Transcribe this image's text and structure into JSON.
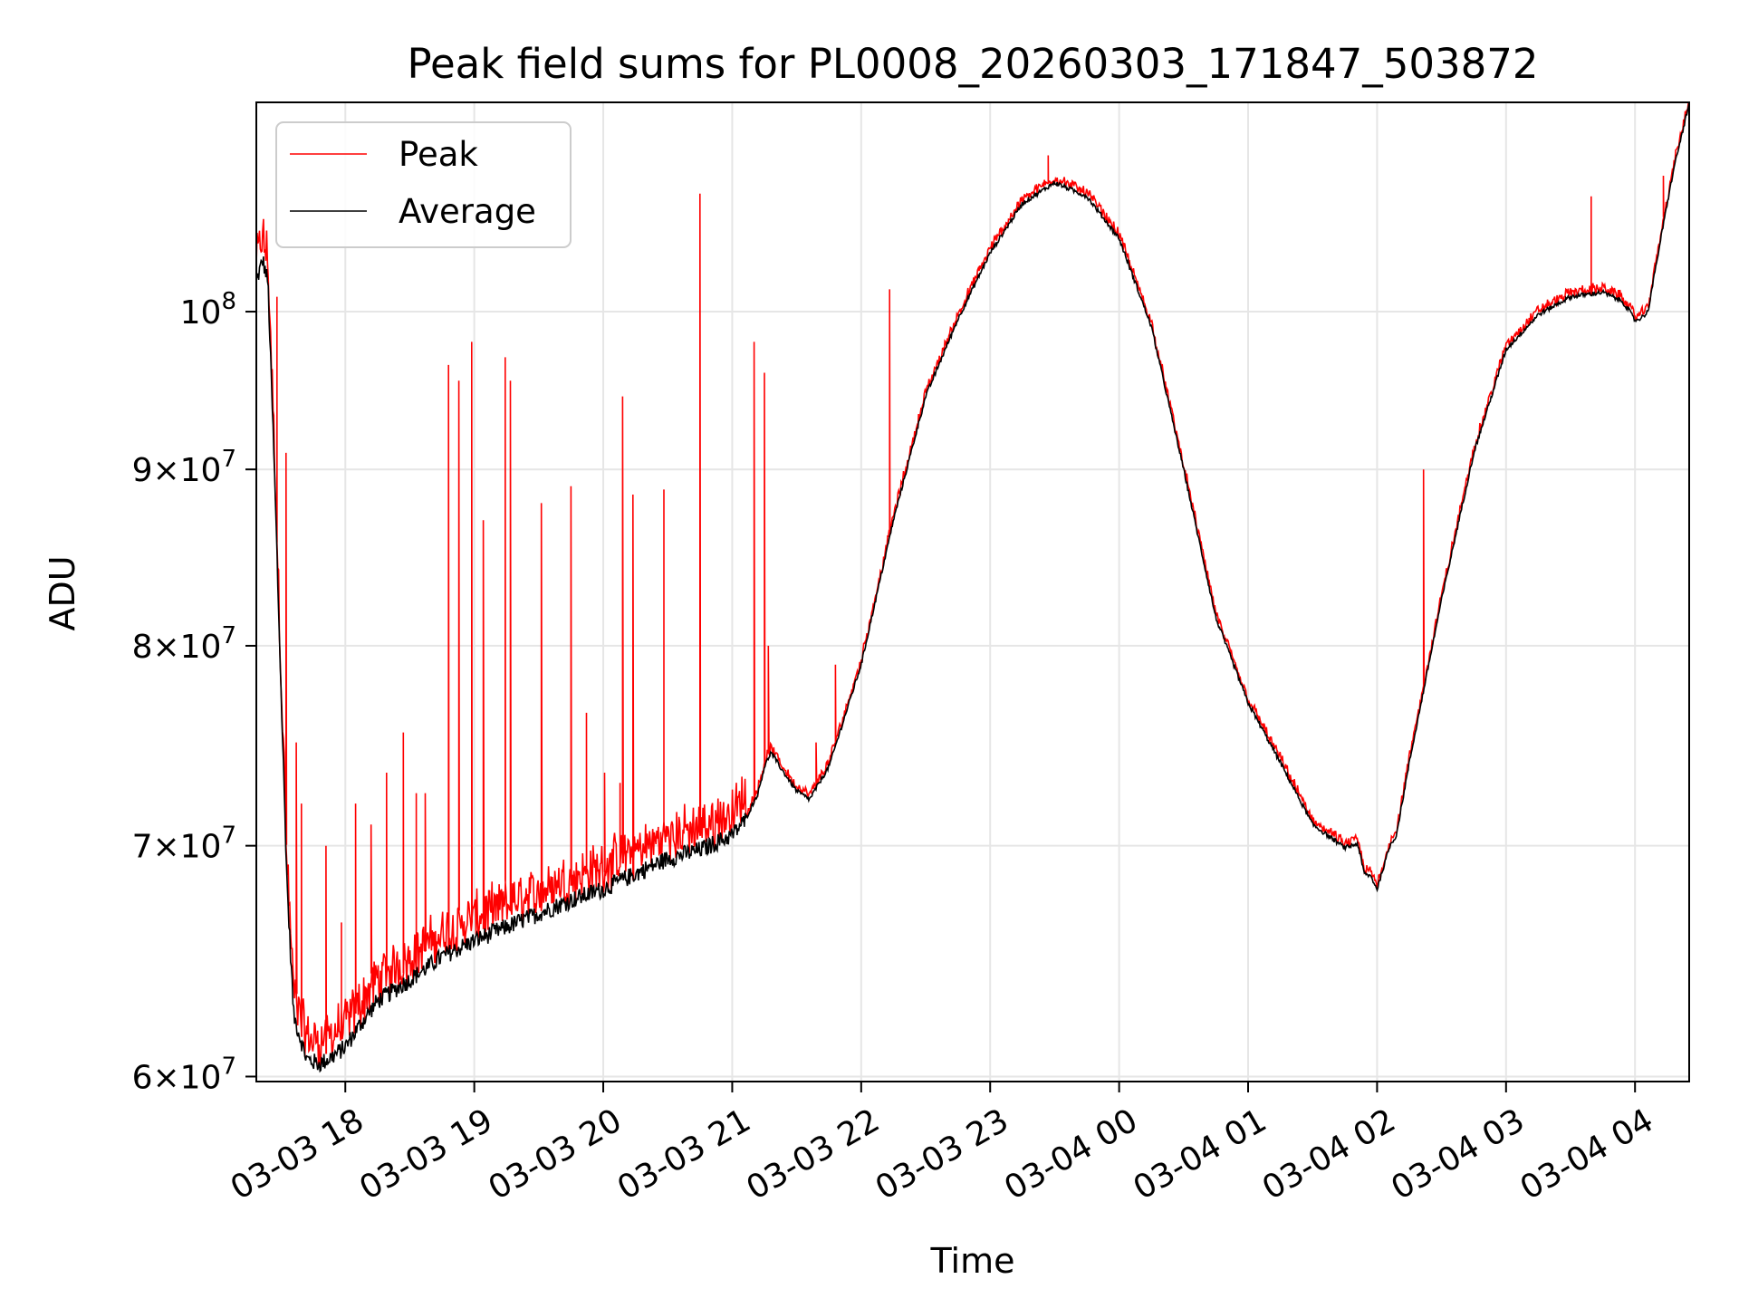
{
  "chart_data": {
    "type": "line",
    "title": "Peak field sums for PL0008_20260303_171847_503872",
    "xlabel": "Time",
    "ylabel": "ADU",
    "y_scale": "log",
    "xlim_hours_since_2026_03_03_17_00": [
      0.31,
      11.42
    ],
    "ylim": [
      59800000,
      115000000
    ],
    "grid": true,
    "legend_position": "upper left",
    "x_ticks": [
      {
        "hour": 1,
        "label": "03-03 18"
      },
      {
        "hour": 2,
        "label": "03-03 19"
      },
      {
        "hour": 3,
        "label": "03-03 20"
      },
      {
        "hour": 4,
        "label": "03-03 21"
      },
      {
        "hour": 5,
        "label": "03-03 22"
      },
      {
        "hour": 6,
        "label": "03-03 23"
      },
      {
        "hour": 7,
        "label": "03-04 00"
      },
      {
        "hour": 8,
        "label": "03-04 01"
      },
      {
        "hour": 9,
        "label": "03-04 02"
      },
      {
        "hour": 10,
        "label": "03-04 03"
      },
      {
        "hour": 11,
        "label": "03-04 04"
      }
    ],
    "y_ticks": [
      {
        "value": 60000000,
        "mant": "6",
        "exp": "7"
      },
      {
        "value": 70000000,
        "mant": "7",
        "exp": "7"
      },
      {
        "value": 80000000,
        "mant": "8",
        "exp": "7"
      },
      {
        "value": 90000000,
        "mant": "9",
        "exp": "7"
      },
      {
        "value": 100000000,
        "mant": "",
        "exp": "8"
      }
    ],
    "series": [
      {
        "name": "Peak",
        "color": "#ff0000"
      },
      {
        "name": "Average",
        "color": "#000000"
      }
    ],
    "average_x_hours": [
      0.31,
      0.36,
      0.4,
      0.45,
      0.5,
      0.55,
      0.6,
      0.7,
      0.8,
      0.9,
      1.0,
      1.1,
      1.25,
      1.5,
      1.75,
      2.0,
      2.25,
      2.5,
      2.75,
      3.0,
      3.25,
      3.5,
      3.75,
      4.0,
      4.1,
      4.2,
      4.25,
      4.3,
      4.4,
      4.5,
      4.6,
      4.75,
      5.0,
      5.25,
      5.5,
      5.75,
      6.0,
      6.25,
      6.5,
      6.75,
      7.0,
      7.25,
      7.5,
      7.75,
      8.0,
      8.25,
      8.5,
      8.75,
      8.85,
      8.9,
      8.95,
      9.0,
      9.05,
      9.1,
      9.15,
      9.25,
      9.5,
      9.75,
      10.0,
      10.25,
      10.5,
      10.75,
      10.9,
      10.96,
      11.0,
      11.05,
      11.1,
      11.2,
      11.3,
      11.42
    ],
    "average_values": [
      102000000,
      103500000,
      102000000,
      90000000,
      78000000,
      68000000,
      62500000,
      60700000,
      60500000,
      60800000,
      61200000,
      62000000,
      63100000,
      64000000,
      65000000,
      65700000,
      66300000,
      66900000,
      67500000,
      68000000,
      68700000,
      69400000,
      69800000,
      70500000,
      71200000,
      72500000,
      73800000,
      74500000,
      73500000,
      72600000,
      72200000,
      73800000,
      79000000,
      87000000,
      94500000,
      99500000,
      104000000,
      107500000,
      109000000,
      108000000,
      105000000,
      99000000,
      90000000,
      81500000,
      77000000,
      74000000,
      71000000,
      69900000,
      70100000,
      68700000,
      68600000,
      68000000,
      69000000,
      70000000,
      70500000,
      74000000,
      82500000,
      91000000,
      97500000,
      99800000,
      101000000,
      101300000,
      100700000,
      100000000,
      99400000,
      99600000,
      100000000,
      105000000,
      110000000,
      114900000
    ],
    "peak_spikes": [
      {
        "x": 0.47,
        "v": 101000000
      },
      {
        "x": 0.54,
        "v": 91000000
      },
      {
        "x": 0.62,
        "v": 75000000
      },
      {
        "x": 0.66,
        "v": 72000000
      },
      {
        "x": 0.85,
        "v": 70000000
      },
      {
        "x": 0.97,
        "v": 66500000
      },
      {
        "x": 1.08,
        "v": 72000000
      },
      {
        "x": 1.2,
        "v": 71000000
      },
      {
        "x": 1.32,
        "v": 73500000
      },
      {
        "x": 1.45,
        "v": 75500000
      },
      {
        "x": 1.55,
        "v": 72500000
      },
      {
        "x": 1.62,
        "v": 72500000
      },
      {
        "x": 1.8,
        "v": 96500000
      },
      {
        "x": 1.88,
        "v": 95500000
      },
      {
        "x": 1.98,
        "v": 98000000
      },
      {
        "x": 2.07,
        "v": 87000000
      },
      {
        "x": 2.24,
        "v": 97000000
      },
      {
        "x": 2.28,
        "v": 95500000
      },
      {
        "x": 2.52,
        "v": 88000000
      },
      {
        "x": 2.75,
        "v": 89000000
      },
      {
        "x": 2.87,
        "v": 76500000
      },
      {
        "x": 3.01,
        "v": 73500000
      },
      {
        "x": 3.13,
        "v": 73000000
      },
      {
        "x": 3.15,
        "v": 94500000
      },
      {
        "x": 3.23,
        "v": 88500000
      },
      {
        "x": 3.47,
        "v": 88800000
      },
      {
        "x": 3.75,
        "v": 108200000
      },
      {
        "x": 4.17,
        "v": 98000000
      },
      {
        "x": 4.25,
        "v": 96000000
      },
      {
        "x": 4.28,
        "v": 80000000
      },
      {
        "x": 4.65,
        "v": 75000000
      },
      {
        "x": 4.8,
        "v": 79000000
      },
      {
        "x": 5.22,
        "v": 101500000
      },
      {
        "x": 6.45,
        "v": 111000000
      },
      {
        "x": 9.36,
        "v": 90000000
      },
      {
        "x": 10.66,
        "v": 108000000
      },
      {
        "x": 11.22,
        "v": 109500000
      }
    ]
  }
}
